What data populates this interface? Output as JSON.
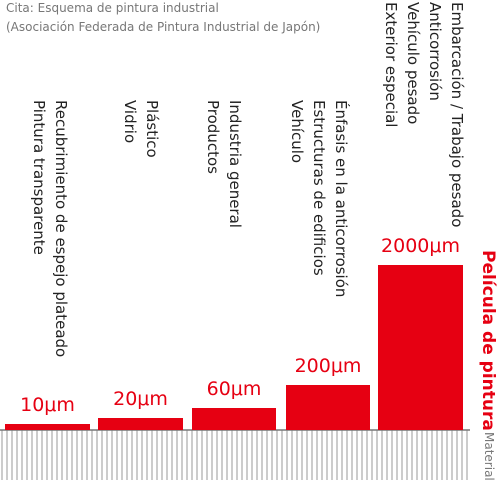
{
  "caption": [
    "Cita: Esquema de pintura industrial",
    "(Asociación Federada de Pintura Industrial de Japón)"
  ],
  "axis_labels": {
    "paint_film": "Película de pintura",
    "material": "Material"
  },
  "items": [
    {
      "value_label": "10μm",
      "lines": [
        "Recubrimiento de espejo plateado",
        "Pintura transparente"
      ]
    },
    {
      "value_label": "20μm",
      "lines": [
        "Plástico",
        "Vidrio"
      ]
    },
    {
      "value_label": "60μm",
      "lines": [
        "Industria general",
        "Productos"
      ]
    },
    {
      "value_label": "200μm",
      "lines": [
        "Énfasis en la anticorrosión",
        "Estructuras de edificios",
        "Vehículo"
      ]
    },
    {
      "value_label": "2000μm",
      "lines": [
        "Embarcación / Trabajo pesado",
        "Anticorrosión",
        "Vehículo pesado",
        "Exterior especial"
      ]
    }
  ]
}
